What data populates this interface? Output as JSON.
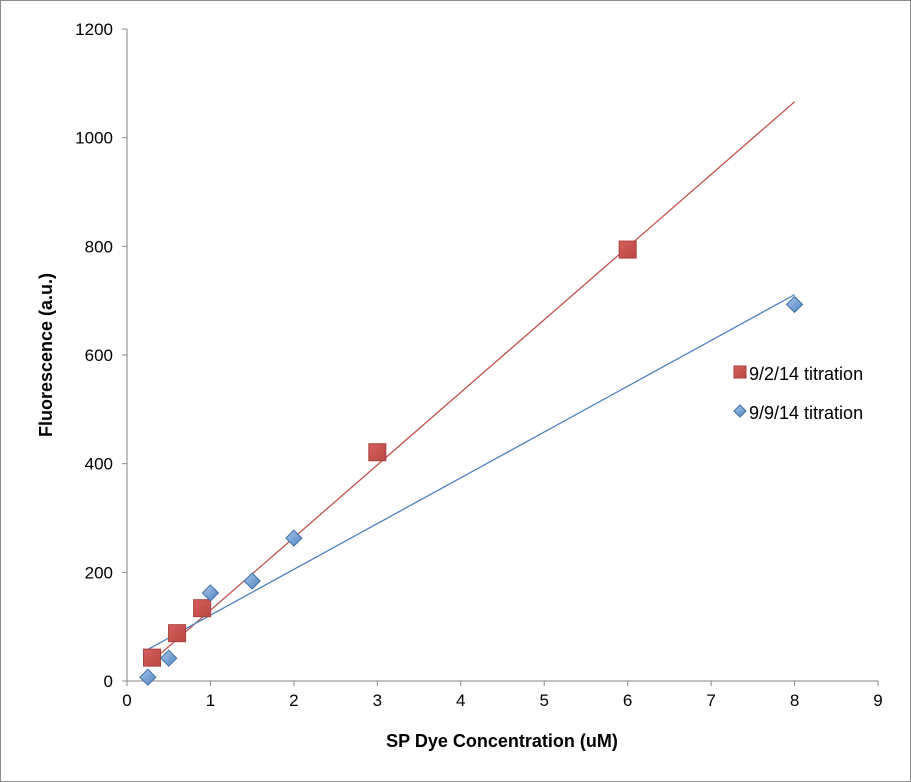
{
  "chart_data": {
    "type": "scatter",
    "title": "",
    "xlabel": "SP Dye Concentration (uM)",
    "ylabel": "Fluorescence (a.u.)",
    "xlim": [
      0,
      9
    ],
    "ylim": [
      0,
      1200
    ],
    "xticks": [
      "0",
      "1",
      "2",
      "3",
      "4",
      "5",
      "6",
      "7",
      "8",
      "9"
    ],
    "yticks": [
      "0",
      "200",
      "400",
      "600",
      "800",
      "1000",
      "1200"
    ],
    "grid": false,
    "legend_position": "right",
    "series": [
      {
        "name": "9/2/14 titration",
        "marker": "square",
        "color": "#c0504d",
        "x": [
          0.3,
          0.6,
          0.9,
          3,
          6
        ],
        "y": [
          43,
          88,
          134,
          421,
          794
        ],
        "trendline": {
          "x": [
            0.25,
            8
          ],
          "y": [
            30,
            1066
          ]
        }
      },
      {
        "name": "9/9/14 titration",
        "marker": "diamond",
        "color": "#4f81bd",
        "x": [
          0.25,
          0.5,
          1,
          1.5,
          2,
          8
        ],
        "y": [
          7,
          42,
          162,
          184,
          263,
          693
        ],
        "trendline": {
          "x": [
            0.25,
            8
          ],
          "y": [
            58,
            711
          ]
        }
      }
    ]
  }
}
